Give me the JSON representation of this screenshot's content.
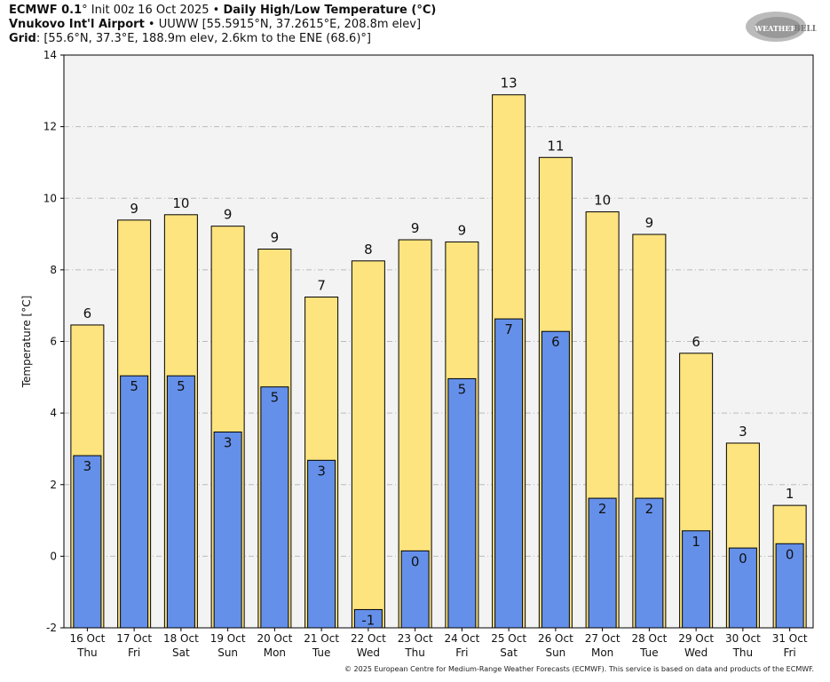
{
  "header": {
    "line1_bold": "ECMWF 0.1",
    "line1_rest": "° Init 00z 16 Oct 2025 • ",
    "line1_title": "Daily High/Low Temperature (°C)",
    "line2_bold": "Vnukovo Int'l Airport",
    "line2_rest": " • UUWW [55.5915°N, 37.2615°E, 208.8m elev]",
    "line3_bold": "Grid",
    "line3_rest": ": [55.6°N, 37.3°E, 188.9m elev, 2.6km to the ENE (68.6)°]"
  },
  "logo_text": "WeatherBELL Analytics LLC",
  "footer": "© 2025 European Centre for Medium-Range Weather Forecasts (ECMWF). This service is based on data and products of the ECMWF.",
  "chart_data": {
    "type": "bar",
    "ylabel": "Temperature [°C]",
    "ylim": [
      -2,
      14
    ],
    "yticks": [
      -2,
      0,
      2,
      4,
      6,
      8,
      10,
      12,
      14
    ],
    "grid": true,
    "categories": [
      "16 Oct",
      "17 Oct",
      "18 Oct",
      "19 Oct",
      "20 Oct",
      "21 Oct",
      "22 Oct",
      "23 Oct",
      "24 Oct",
      "25 Oct",
      "26 Oct",
      "27 Oct",
      "28 Oct",
      "29 Oct",
      "30 Oct",
      "31 Oct"
    ],
    "weekdays": [
      "Thu",
      "Fri",
      "Sat",
      "Sun",
      "Mon",
      "Tue",
      "Wed",
      "Thu",
      "Fri",
      "Sat",
      "Sun",
      "Mon",
      "Tue",
      "Wed",
      "Thu",
      "Fri"
    ],
    "series": [
      {
        "key": "high",
        "color": "#fde47f",
        "values": [
          6.46,
          9.39,
          9.54,
          9.22,
          8.58,
          7.24,
          8.25,
          8.84,
          8.78,
          12.89,
          11.14,
          9.62,
          8.99,
          5.67,
          3.16,
          1.42
        ],
        "labels": [
          "6",
          "9",
          "10",
          "9",
          "9",
          "7",
          "8",
          "9",
          "9",
          "13",
          "11",
          "10",
          "9",
          "6",
          "3",
          "1"
        ]
      },
      {
        "key": "low",
        "color": "#6590ea",
        "values": [
          2.81,
          5.04,
          5.04,
          3.47,
          4.73,
          2.68,
          -1.49,
          0.15,
          4.96,
          6.63,
          6.28,
          1.62,
          1.62,
          0.71,
          0.23,
          0.35
        ],
        "labels": [
          "3",
          "5",
          "5",
          "3",
          "5",
          "3",
          "-1",
          "0",
          "5",
          "7",
          "6",
          "2",
          "2",
          "1",
          "0",
          "0"
        ]
      }
    ]
  }
}
